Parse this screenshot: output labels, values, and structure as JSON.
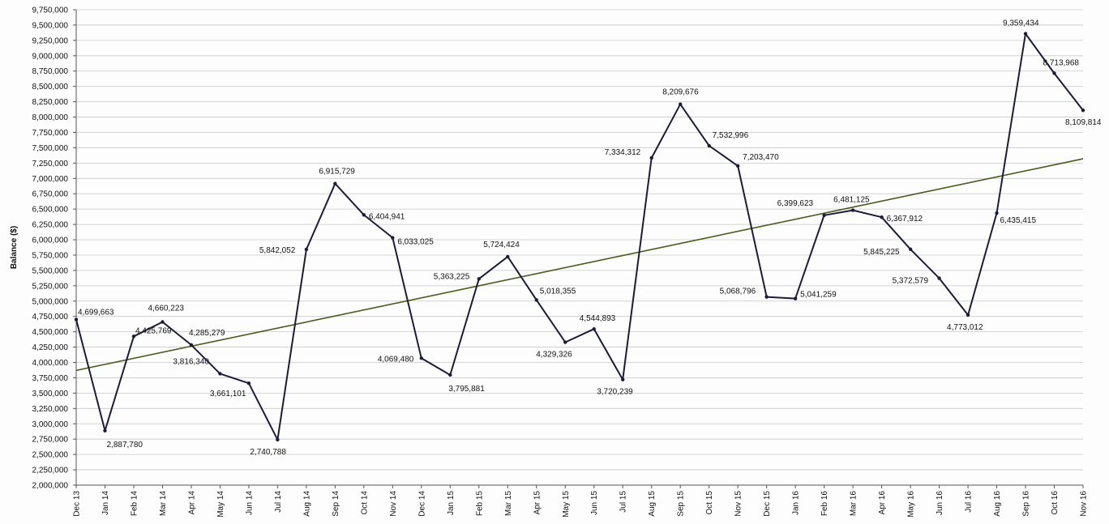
{
  "chart_data": {
    "type": "line",
    "title": "",
    "xlabel": "",
    "ylabel": "Balance ($)",
    "ylim": [
      2000000,
      9750000
    ],
    "ytick_step": 250000,
    "yticks": [
      "2,000,000",
      "2,250,000",
      "2,500,000",
      "2,750,000",
      "3,000,000",
      "3,250,000",
      "3,500,000",
      "3,750,000",
      "4,000,000",
      "4,250,000",
      "4,500,000",
      "4,750,000",
      "5,000,000",
      "5,250,000",
      "5,500,000",
      "5,750,000",
      "6,000,000",
      "6,250,000",
      "6,500,000",
      "6,750,000",
      "7,000,000",
      "7,250,000",
      "7,500,000",
      "7,750,000",
      "8,000,000",
      "8,250,000",
      "8,500,000",
      "8,750,000",
      "9,000,000",
      "9,250,000",
      "9,500,000",
      "9,750,000"
    ],
    "grid": true,
    "categories": [
      "Dec 13",
      "Jan 14",
      "Feb 14",
      "Mar 14",
      "Apr 14",
      "May 14",
      "Jun 14",
      "Jul 14",
      "Aug 14",
      "Sep 14",
      "Oct 14",
      "Nov 14",
      "Dec 14",
      "Jan 15",
      "Feb 15",
      "Mar 15",
      "Apr 15",
      "May 15",
      "Jun 15",
      "Jul 15",
      "Aug 15",
      "Sep 15",
      "Oct 15",
      "Nov 15",
      "Dec 15",
      "Jan 16",
      "Feb 16",
      "Mar 16",
      "Apr 16",
      "May 16",
      "Jun 16",
      "Jul 16",
      "Aug 16",
      "Sep 16",
      "Oct 16",
      "Nov 16"
    ],
    "series": [
      {
        "name": "",
        "color": "#1c1c3a",
        "values": [
          4699663,
          2887780,
          4425769,
          4660223,
          4285279,
          3816340,
          3661101,
          2740788,
          5842052,
          6915729,
          6404941,
          6033025,
          4069480,
          3795881,
          5363225,
          5724424,
          5018355,
          4329326,
          4544893,
          3720239,
          7334312,
          8209676,
          7532996,
          7203470,
          5068796,
          5041259,
          6399623,
          6481125,
          6367912,
          5845225,
          5372579,
          4773012,
          6435415,
          9359434,
          8713968,
          8109814
        ],
        "data_labels": [
          "4,699,663",
          "2,887,780",
          "4,425,769",
          "4,660,223",
          "4,285,279",
          "3,816,340",
          "3,661,101",
          "2,740,788",
          "5,842,052",
          "6,915,729",
          "6,404,941",
          "6,033,025",
          "4,069,480",
          "3,795,881",
          "5,363,225",
          "5,724,424",
          "5,018,355",
          "4,329,326",
          "4,544,893",
          "3,720,239",
          "7,334,312",
          "8,209,676",
          "7,532,996",
          "7,203,470",
          "5,068,796",
          "5,041,259",
          "6,399,623",
          "6,481,125",
          "6,367,912",
          "5,845,225",
          "5,372,579",
          "4,773,012",
          "6,435,415",
          "9,359,434",
          "8,713,968",
          "8,109,814"
        ]
      }
    ],
    "trendline": {
      "color": "#4a5a1e",
      "start": 3870000,
      "end": 7320000
    }
  }
}
